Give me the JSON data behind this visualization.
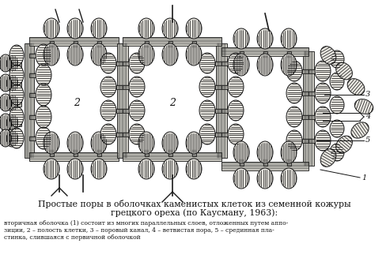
{
  "title_line1": "Простые поры в оболочках каменистых клеток из семенной кожуры",
  "title_line2": "грецкого ореха (по Каусману, 1963):",
  "caption_line1": "вторичная оболочка (1) состоит из многих параллельных слоев, отложенных путем аппо-",
  "caption_line2": "зиции, 2 – полость клетки, 3 – поровый канал, 4 – ветвистая пора, 5 – срединная пла-",
  "caption_line3": "стинка, слившаяся с первичной оболочкой",
  "bg_color": "#ffffff",
  "text_color": "#111111",
  "fig_width": 4.93,
  "fig_height": 3.51,
  "dpi": 100,
  "illus_bg": "#ffffff",
  "wall_fill": "#e8e6e0",
  "wall_line": "#1a1a1a",
  "lobe_fill": "#dddbd3"
}
